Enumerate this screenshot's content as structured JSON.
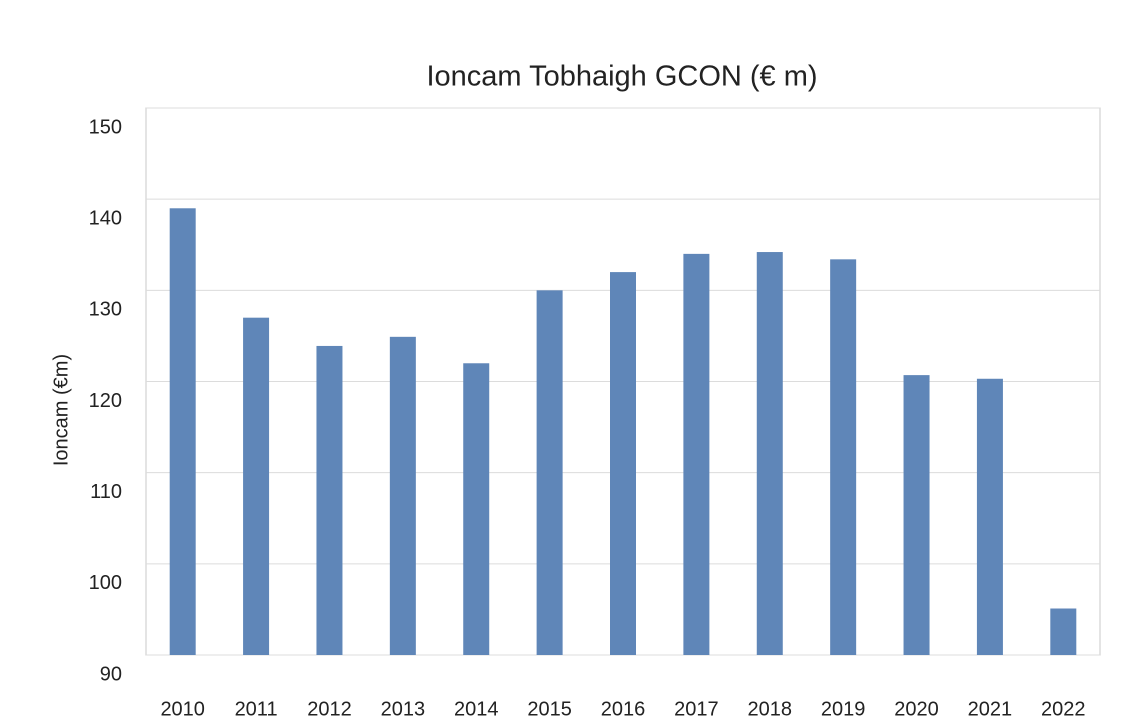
{
  "chart_data": {
    "type": "bar",
    "title": "Ioncam Tobhaigh GCON (€ m)",
    "y_label": "Ioncam (€m)",
    "categories": [
      "2010",
      "2011",
      "2012",
      "2013",
      "2014",
      "2015",
      "2016",
      "2017",
      "2018",
      "2019",
      "2020",
      "2021",
      "2022"
    ],
    "values": [
      139.0,
      127.0,
      123.9,
      124.9,
      122.0,
      130.0,
      132.0,
      134.0,
      134.2,
      133.4,
      120.7,
      120.3,
      95.1
    ],
    "color": "#5f86b8",
    "ylim": [
      90,
      150
    ],
    "yticks": [
      90,
      100,
      110,
      120,
      130,
      140,
      150
    ],
    "grid": true
  }
}
